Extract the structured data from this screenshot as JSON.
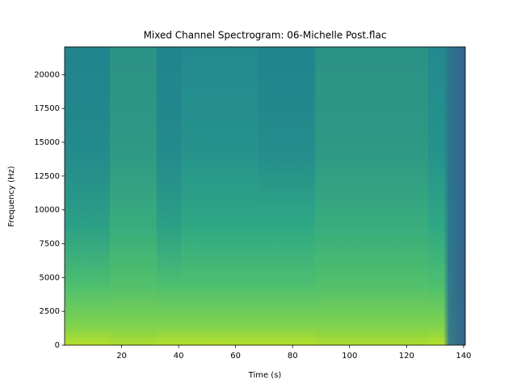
{
  "chart_data": {
    "type": "spectrogram",
    "title": "Mixed Channel Spectrogram: 06-Michelle Post.flac",
    "x_label": "Time (s)",
    "y_label": "Frequency (Hz)",
    "xlim": [
      0,
      140.6
    ],
    "ylim": [
      0,
      22050
    ],
    "xticks": [
      20,
      40,
      60,
      80,
      100,
      120,
      140
    ],
    "yticks": [
      0,
      2500,
      5000,
      7500,
      10000,
      12500,
      15000,
      17500,
      20000
    ]
  }
}
